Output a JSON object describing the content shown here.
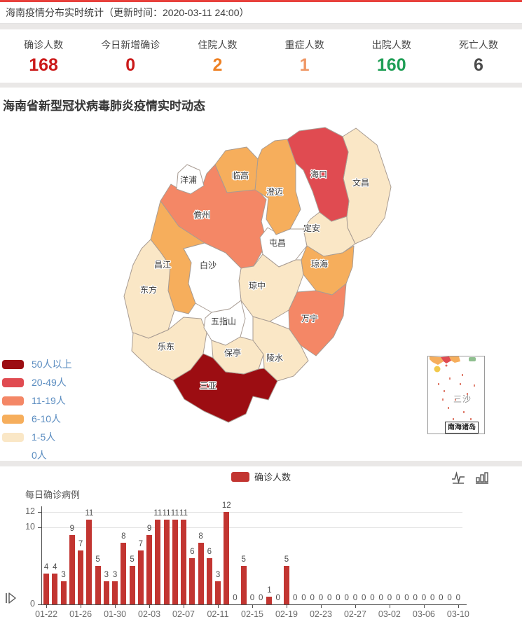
{
  "header": {
    "title": "海南疫情分布实时统计（更新时间：2020-03-11 24:00）"
  },
  "stats": {
    "items": [
      {
        "label": "确诊人数",
        "value": "168",
        "color": "#cb1a1a"
      },
      {
        "label": "今日新增确诊",
        "value": "0",
        "color": "#cb1a1a"
      },
      {
        "label": "住院人数",
        "value": "2",
        "color": "#ee8124"
      },
      {
        "label": "重症人数",
        "value": "1",
        "color": "#ef9765"
      },
      {
        "label": "出院人数",
        "value": "160",
        "color": "#1e9e55"
      },
      {
        "label": "死亡人数",
        "value": "6",
        "color": "#4c4c4c"
      }
    ]
  },
  "map_section": {
    "title": "海南省新型冠状病毒肺炎疫情实时动态",
    "level_colors": {
      "50+": "#9c0d12",
      "20-49": "#e04b51",
      "11-19": "#f48766",
      "6-10": "#f6ae5c",
      "1-5": "#fae7c6",
      "0": "#ffffff"
    },
    "legend": [
      {
        "label": "50人以上",
        "level": "50+"
      },
      {
        "label": "20-49人",
        "level": "20-49"
      },
      {
        "label": "11-19人",
        "level": "11-19"
      },
      {
        "label": "6-10人",
        "level": "6-10"
      },
      {
        "label": "1-5人",
        "level": "1-5"
      },
      {
        "label": "0人",
        "level": "0"
      }
    ],
    "regions": [
      {
        "id": "haikou",
        "name": "海口",
        "level": "20-49"
      },
      {
        "id": "sanya",
        "name": "三亚",
        "level": "50+"
      },
      {
        "id": "danzhou",
        "name": "儋州",
        "level": "11-19"
      },
      {
        "id": "wanning",
        "name": "万宁",
        "level": "11-19"
      },
      {
        "id": "lingao",
        "name": "临高",
        "level": "6-10"
      },
      {
        "id": "chengmai",
        "name": "澄迈",
        "level": "6-10"
      },
      {
        "id": "qionghai",
        "name": "琼海",
        "level": "6-10"
      },
      {
        "id": "changjiang",
        "name": "昌江",
        "level": "6-10"
      },
      {
        "id": "wenchang",
        "name": "文昌",
        "level": "1-5"
      },
      {
        "id": "dingan",
        "name": "定安",
        "level": "1-5"
      },
      {
        "id": "dongfang",
        "name": "东方",
        "level": "1-5"
      },
      {
        "id": "ledong",
        "name": "乐东",
        "level": "1-5"
      },
      {
        "id": "baoting",
        "name": "保亭",
        "level": "1-5"
      },
      {
        "id": "lingshui",
        "name": "陵水",
        "level": "1-5"
      },
      {
        "id": "qiongzhong",
        "name": "琼中",
        "level": "1-5"
      },
      {
        "id": "yangpu",
        "name": "洋浦",
        "level": "0"
      },
      {
        "id": "baisha",
        "name": "白沙",
        "level": "0"
      },
      {
        "id": "tunchang",
        "name": "屯昌",
        "level": "0"
      },
      {
        "id": "wuzhishan",
        "name": "五指山",
        "level": "0"
      }
    ],
    "inset": {
      "region_label": "三沙",
      "caption": "南海诸岛"
    }
  },
  "chart_section": {
    "legend_label": "确诊人数",
    "axis_title": "每日确诊病例",
    "toolbox_icons": [
      "line-chart-icon",
      "bar-chart-icon"
    ],
    "play_icon": "play-icon"
  },
  "chart_data": {
    "type": "bar",
    "title": "每日确诊病例",
    "legend_position": "top-center",
    "grid": true,
    "bar_color": "#c23531",
    "ylim": [
      0,
      12
    ],
    "y_ticks": [
      0,
      10,
      12
    ],
    "x_label_interval": 4,
    "x": [
      "01-22",
      "01-23",
      "01-24",
      "01-25",
      "01-26",
      "01-27",
      "01-28",
      "01-29",
      "01-30",
      "01-31",
      "02-01",
      "02-02",
      "02-03",
      "02-04",
      "02-05",
      "02-06",
      "02-07",
      "02-08",
      "02-09",
      "02-10",
      "02-11",
      "02-12",
      "02-13",
      "02-14",
      "02-15",
      "02-16",
      "02-17",
      "02-18",
      "02-19",
      "02-20",
      "02-21",
      "02-22",
      "02-23",
      "02-24",
      "02-25",
      "02-26",
      "02-27",
      "02-28",
      "02-29",
      "03-01",
      "03-02",
      "03-03",
      "03-04",
      "03-05",
      "03-06",
      "03-07",
      "03-08",
      "03-09",
      "03-10"
    ],
    "series": [
      {
        "name": "确诊人数",
        "values": [
          4,
          4,
          3,
          9,
          7,
          11,
          5,
          3,
          3,
          8,
          5,
          7,
          9,
          11,
          11,
          11,
          11,
          6,
          8,
          6,
          3,
          12,
          0,
          5,
          0,
          0,
          1,
          0,
          5,
          0,
          0,
          0,
          0,
          0,
          0,
          0,
          0,
          0,
          0,
          0,
          0,
          0,
          0,
          0,
          0,
          0,
          0,
          0,
          0
        ]
      }
    ]
  }
}
